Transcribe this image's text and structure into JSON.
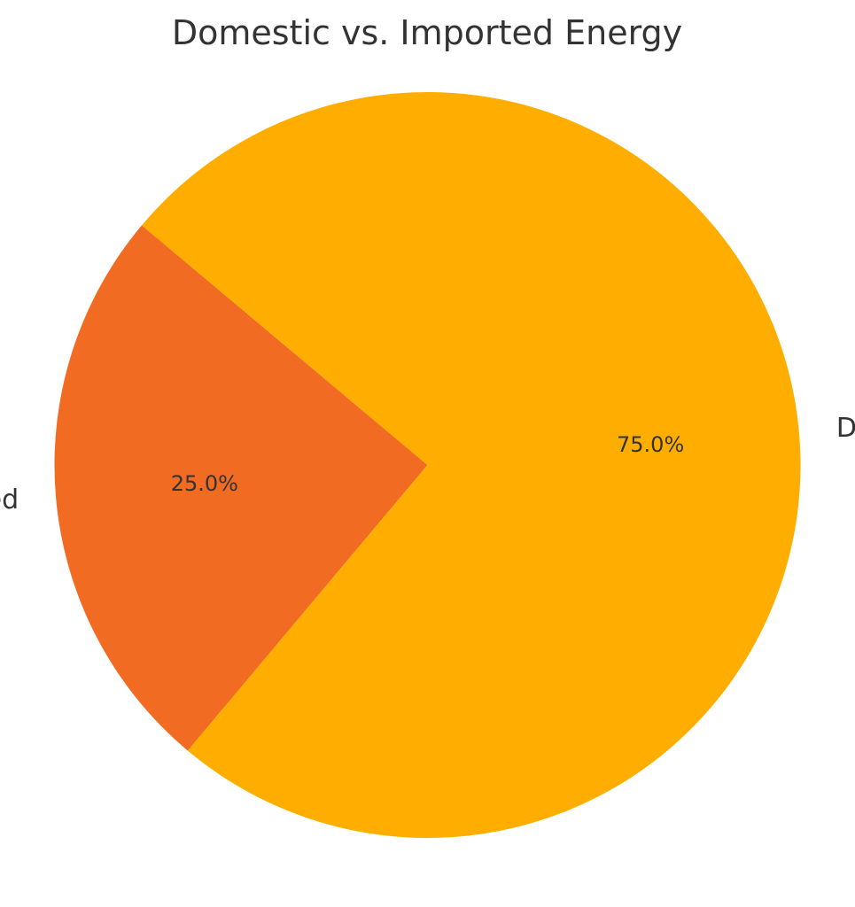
{
  "chart_data": {
    "type": "pie",
    "title": "Domestic vs. Imported Energy",
    "slices": [
      {
        "label": "Imported",
        "value": 25.0,
        "pct_label": "25.0%",
        "color": "#F26B22"
      },
      {
        "label": "Domestic",
        "value": 75.0,
        "pct_label": "75.0%",
        "color": "#FFAE00"
      }
    ],
    "start_angle_deg": 140,
    "direction": "counterclockwise"
  }
}
